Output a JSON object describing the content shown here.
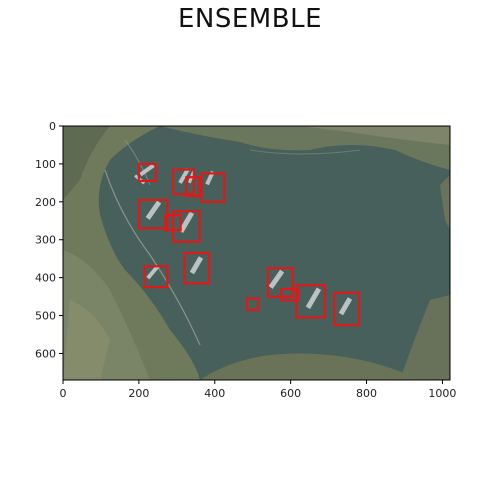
{
  "title": "ENSEMBLE",
  "image": {
    "description": "Aerial satellite photo of a harbor with docked ships, detections overlaid as red boxes",
    "width_units": 1020,
    "height_units": 670
  },
  "axes": {
    "x_ticks": [
      0,
      200,
      400,
      600,
      800,
      1000
    ],
    "y_ticks": [
      0,
      100,
      200,
      300,
      400,
      500,
      600
    ]
  },
  "colors": {
    "box": "#e01818",
    "water": "#46605c",
    "land": "#6f7a5e"
  },
  "detections": [
    {
      "label": "ship",
      "x1": 200,
      "y1": 100,
      "x2": 245,
      "y2": 145
    },
    {
      "label": "ship",
      "x1": 290,
      "y1": 115,
      "x2": 345,
      "y2": 180
    },
    {
      "label": "ship",
      "x1": 325,
      "y1": 135,
      "x2": 360,
      "y2": 185
    },
    {
      "label": "ship",
      "x1": 365,
      "y1": 125,
      "x2": 425,
      "y2": 200
    },
    {
      "label": "ship",
      "x1": 200,
      "y1": 195,
      "x2": 275,
      "y2": 270
    },
    {
      "label": "ship",
      "x1": 270,
      "y1": 235,
      "x2": 310,
      "y2": 275
    },
    {
      "label": "ship",
      "x1": 290,
      "y1": 225,
      "x2": 360,
      "y2": 305
    },
    {
      "label": "ship",
      "x1": 215,
      "y1": 370,
      "x2": 275,
      "y2": 425
    },
    {
      "label": "ship",
      "x1": 320,
      "y1": 335,
      "x2": 385,
      "y2": 415
    },
    {
      "label": "ship",
      "x1": 540,
      "y1": 375,
      "x2": 605,
      "y2": 450
    },
    {
      "label": "ship",
      "x1": 485,
      "y1": 455,
      "x2": 515,
      "y2": 485
    },
    {
      "label": "ship",
      "x1": 575,
      "y1": 430,
      "x2": 620,
      "y2": 460
    },
    {
      "label": "ship",
      "x1": 615,
      "y1": 420,
      "x2": 690,
      "y2": 505
    },
    {
      "label": "ship",
      "x1": 715,
      "y1": 440,
      "x2": 780,
      "y2": 525
    }
  ]
}
